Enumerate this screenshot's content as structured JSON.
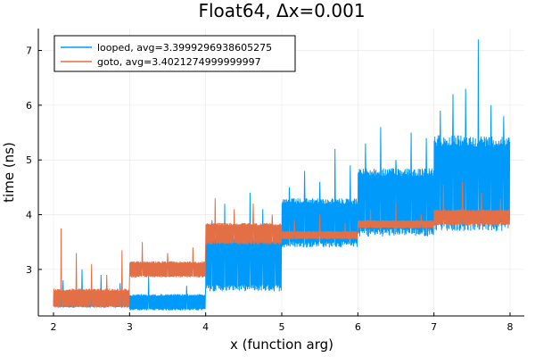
{
  "chart_data": {
    "type": "line",
    "title": "Float64, Δx=0.001",
    "xlabel": "x (function arg)",
    "ylabel": "time (ns)",
    "xlim": [
      2,
      8
    ],
    "ylim": [
      2.15,
      7.4
    ],
    "xticks": [
      2,
      3,
      4,
      5,
      6,
      7,
      8
    ],
    "yticks": [
      3,
      4,
      5,
      6,
      7
    ],
    "grid": true,
    "legend_position": "top-left",
    "series": [
      {
        "name": "looped, avg=3.3999296938605275",
        "color": "#009AFA",
        "segments": [
          {
            "x": [
              2,
              3
            ],
            "low": 2.3,
            "high": 2.6,
            "spikes": [
              2.8,
              3.0,
              2.9,
              2.75
            ]
          },
          {
            "x": [
              3,
              4
            ],
            "low": 2.25,
            "high": 2.55,
            "spikes": [
              2.9,
              2.7
            ]
          },
          {
            "x": [
              4,
              5
            ],
            "low": 2.6,
            "high": 3.6,
            "spikes": [
              3.9,
              4.2,
              3.8,
              4.4,
              4.1,
              3.7
            ]
          },
          {
            "x": [
              5,
              6
            ],
            "low": 3.4,
            "high": 4.3,
            "spikes": [
              4.5,
              4.8,
              4.6,
              5.2,
              4.9
            ]
          },
          {
            "x": [
              6,
              7
            ],
            "low": 3.6,
            "high": 4.85,
            "spikes": [
              5.3,
              5.6,
              5.0,
              5.5,
              5.4
            ]
          },
          {
            "x": [
              7,
              8
            ],
            "low": 3.7,
            "high": 5.45,
            "spikes": [
              5.9,
              6.2,
              6.3,
              7.2,
              6.0,
              5.8
            ]
          }
        ]
      },
      {
        "name": "goto, avg=3.4021274999999997",
        "color": "#E26F46",
        "segments": [
          {
            "x": [
              2,
              3
            ],
            "low": 2.3,
            "high": 2.65,
            "spikes": [
              3.75,
              3.3,
              3.1,
              2.9,
              3.35
            ]
          },
          {
            "x": [
              3,
              4
            ],
            "low": 2.85,
            "high": 3.15,
            "spikes": [
              3.5,
              3.3,
              3.4
            ]
          },
          {
            "x": [
              4,
              5
            ],
            "low": 3.45,
            "high": 3.85,
            "spikes": [
              4.3,
              4.1,
              4.2,
              4.0
            ]
          },
          {
            "x": [
              5,
              6
            ],
            "low": 3.55,
            "high": 3.7,
            "spikes": [
              3.9,
              4.0,
              3.85
            ]
          },
          {
            "x": [
              6,
              7
            ],
            "low": 3.75,
            "high": 3.9,
            "spikes": [
              4.1,
              4.2,
              4.0
            ]
          },
          {
            "x": [
              7,
              8
            ],
            "low": 3.8,
            "high": 4.1,
            "spikes": [
              4.55,
              4.6,
              4.4,
              4.3
            ]
          }
        ]
      }
    ]
  }
}
